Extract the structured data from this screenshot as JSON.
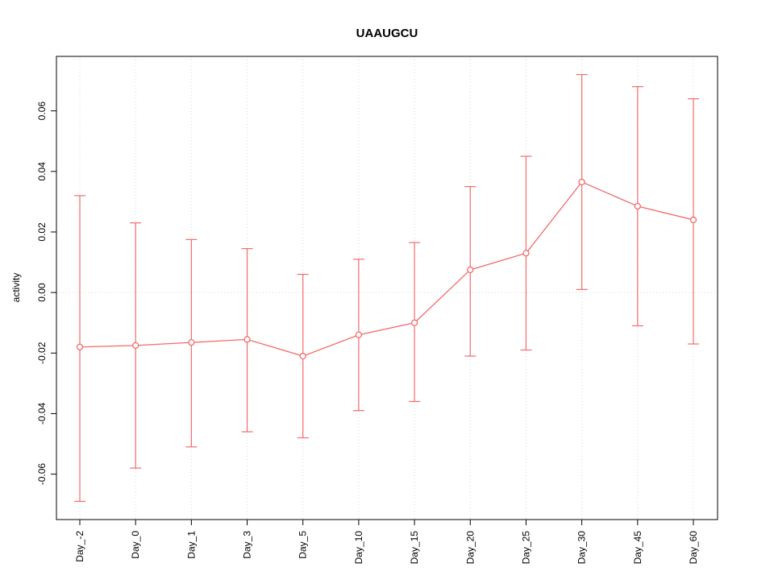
{
  "chart_data": {
    "type": "line",
    "title": "UAAUGCU",
    "xlabel": "",
    "ylabel": "activity",
    "categories": [
      "Day_-2",
      "Day_0",
      "Day_1",
      "Day_3",
      "Day_5",
      "Day_10",
      "Day_15",
      "Day_20",
      "Day_25",
      "Day_30",
      "Day_45",
      "Day_60"
    ],
    "series": [
      {
        "name": "activity",
        "values": [
          -0.018,
          -0.0175,
          -0.0165,
          -0.0155,
          -0.021,
          -0.014,
          -0.01,
          0.0075,
          0.013,
          0.0365,
          0.0285,
          0.024
        ],
        "error_lower": [
          -0.069,
          -0.058,
          -0.051,
          -0.046,
          -0.048,
          -0.039,
          -0.036,
          -0.021,
          -0.019,
          0.001,
          -0.011,
          -0.017
        ],
        "error_upper": [
          0.032,
          0.023,
          0.0175,
          0.0145,
          0.006,
          0.011,
          0.0165,
          0.035,
          0.045,
          0.072,
          0.068,
          0.064
        ],
        "color": "#f26b6b"
      }
    ],
    "y_ticks": [
      "-0.06",
      "-0.04",
      "-0.02",
      "0.00",
      "0.02",
      "0.04",
      "0.06"
    ],
    "y_tick_values": [
      -0.06,
      -0.04,
      -0.02,
      0.0,
      0.02,
      0.04,
      0.06
    ],
    "ylim": [
      -0.075,
      0.078
    ],
    "grid": "dotted vertical per category, dotted horizontal at zero",
    "legend_position": "none",
    "gridline_color": "#d8d8d8",
    "zero_line_color": "#d8d8d8",
    "axis_color": "#000000",
    "background_color": "#ffffff"
  }
}
